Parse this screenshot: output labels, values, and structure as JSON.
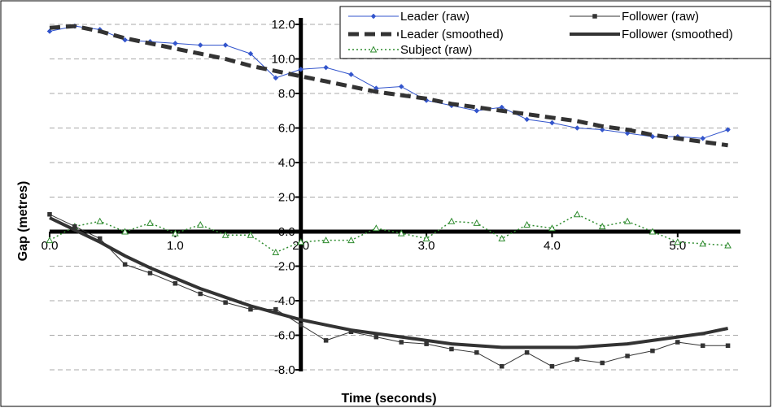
{
  "chart_data": {
    "type": "line",
    "xlabel": "Time (seconds)",
    "ylabel": "Gap (metres)",
    "xlim": [
      0,
      5.5
    ],
    "ylim": [
      -8,
      12
    ],
    "x_ticks": [
      "0.0",
      "1.0",
      "2.0",
      "3.0",
      "4.0",
      "5.0"
    ],
    "x_tick_values": [
      0,
      1,
      2,
      3,
      4,
      5
    ],
    "y_ticks": [
      "12.0",
      "10.0",
      "8.0",
      "6.0",
      "4.0",
      "2.0",
      "0.0",
      "-2.0",
      "-4.0",
      "-6.0",
      "-8.0"
    ],
    "y_tick_values": [
      12,
      10,
      8,
      6,
      4,
      2,
      0,
      -2,
      -4,
      -6,
      -8
    ],
    "y_axis_at_x": 2.0,
    "grid": "horizontal dashed",
    "legend_position": "top-right",
    "series": [
      {
        "name": "Leader (raw)",
        "style": "line-markers",
        "color": "#3355cc",
        "x": [
          0,
          0.2,
          0.4,
          0.6,
          0.8,
          1.0,
          1.2,
          1.4,
          1.6,
          1.8,
          2.0,
          2.2,
          2.4,
          2.6,
          2.8,
          3.0,
          3.2,
          3.4,
          3.6,
          3.8,
          4.0,
          4.2,
          4.4,
          4.6,
          4.8,
          5.0,
          5.2,
          5.4
        ],
        "y": [
          11.6,
          11.9,
          11.7,
          11.1,
          11.0,
          10.9,
          10.8,
          10.8,
          10.3,
          8.9,
          9.4,
          9.5,
          9.1,
          8.3,
          8.4,
          7.6,
          7.3,
          7.0,
          7.2,
          6.5,
          6.3,
          6.0,
          5.9,
          5.7,
          5.5,
          5.5,
          5.4,
          5.9
        ]
      },
      {
        "name": "Follower (raw)",
        "style": "line-markers",
        "color": "#333333",
        "x": [
          0,
          0.2,
          0.4,
          0.6,
          0.8,
          1.0,
          1.2,
          1.4,
          1.6,
          1.8,
          2.0,
          2.2,
          2.4,
          2.6,
          2.8,
          3.0,
          3.2,
          3.4,
          3.6,
          3.8,
          4.0,
          4.2,
          4.4,
          4.6,
          4.8,
          5.0,
          5.2,
          5.4
        ],
        "y": [
          1.0,
          0.3,
          -0.4,
          -1.9,
          -2.4,
          -3.0,
          -3.6,
          -4.1,
          -4.5,
          -4.5,
          -5.4,
          -6.3,
          -5.8,
          -6.1,
          -6.4,
          -6.5,
          -6.8,
          -7.0,
          -7.8,
          -7.0,
          -7.8,
          -7.4,
          -7.6,
          -7.2,
          -6.9,
          -6.4,
          -6.6,
          -6.6
        ]
      },
      {
        "name": "Leader (smoothed)",
        "style": "thick-dashed",
        "color": "#333333",
        "x": [
          0,
          0.2,
          0.4,
          0.6,
          0.8,
          1.0,
          1.2,
          1.4,
          1.6,
          1.8,
          2.0,
          2.2,
          2.4,
          2.6,
          2.8,
          3.0,
          3.2,
          3.4,
          3.6,
          3.8,
          4.0,
          4.2,
          4.4,
          4.6,
          4.8,
          5.0,
          5.2,
          5.4
        ],
        "y": [
          11.8,
          11.9,
          11.6,
          11.2,
          10.9,
          10.6,
          10.3,
          10.0,
          9.6,
          9.3,
          9.0,
          8.7,
          8.4,
          8.1,
          7.9,
          7.7,
          7.4,
          7.2,
          7.0,
          6.8,
          6.6,
          6.4,
          6.1,
          5.9,
          5.6,
          5.4,
          5.2,
          5.0
        ]
      },
      {
        "name": "Follower (smoothed)",
        "style": "thick-line",
        "color": "#333333",
        "x": [
          0,
          0.2,
          0.4,
          0.6,
          0.8,
          1.0,
          1.2,
          1.4,
          1.6,
          1.8,
          2.0,
          2.2,
          2.4,
          2.6,
          2.8,
          3.0,
          3.2,
          3.4,
          3.6,
          3.8,
          4.0,
          4.2,
          4.4,
          4.6,
          4.8,
          5.0,
          5.2,
          5.4
        ],
        "y": [
          0.8,
          0.1,
          -0.6,
          -1.4,
          -2.1,
          -2.7,
          -3.3,
          -3.8,
          -4.3,
          -4.7,
          -5.1,
          -5.4,
          -5.7,
          -5.9,
          -6.1,
          -6.3,
          -6.5,
          -6.6,
          -6.7,
          -6.7,
          -6.7,
          -6.7,
          -6.6,
          -6.5,
          -6.3,
          -6.1,
          -5.9,
          -5.6
        ]
      },
      {
        "name": "Subject (raw)",
        "style": "dotted-markers",
        "color": "#2e8b2e",
        "x": [
          0,
          0.2,
          0.4,
          0.6,
          0.8,
          1.0,
          1.2,
          1.4,
          1.6,
          1.8,
          2.0,
          2.2,
          2.4,
          2.6,
          2.8,
          3.0,
          3.2,
          3.4,
          3.6,
          3.8,
          4.0,
          4.2,
          4.4,
          4.6,
          4.8,
          5.0,
          5.2,
          5.4
        ],
        "y": [
          -0.5,
          0.3,
          0.6,
          0.0,
          0.5,
          -0.1,
          0.4,
          -0.2,
          -0.2,
          -1.2,
          -0.6,
          -0.5,
          -0.5,
          0.2,
          -0.1,
          -0.4,
          0.6,
          0.5,
          -0.4,
          0.4,
          0.2,
          1.0,
          0.3,
          0.6,
          0.0,
          -0.6,
          -0.7,
          -0.8
        ]
      }
    ]
  }
}
